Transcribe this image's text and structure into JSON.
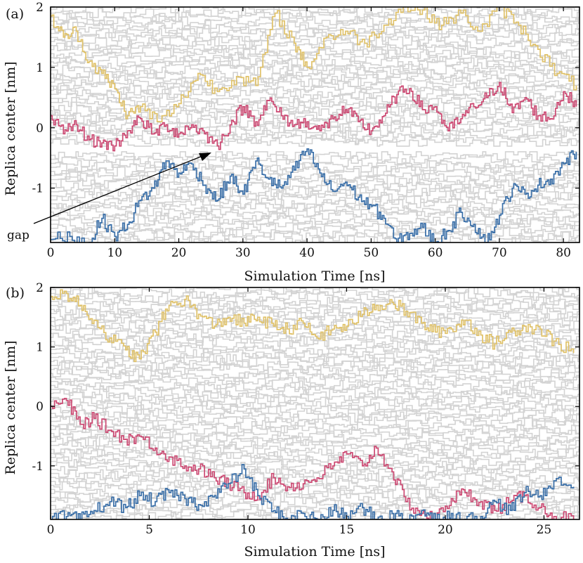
{
  "colors": {
    "background_traces": "#d3d3d3",
    "yellow": "#e0c26a",
    "red": "#cc4a73",
    "blue": "#3a6fa8",
    "axis": "#000000"
  },
  "chart_data": [
    {
      "type": "line",
      "panel_label": "(a)",
      "xlabel": "Simulation Time [ns]",
      "ylabel": "Replica center [nm]",
      "xlim": [
        0,
        82.5
      ],
      "ylim": [
        -1.9,
        2.0
      ],
      "xticks": [
        0,
        10,
        20,
        30,
        40,
        50,
        60,
        70,
        80
      ],
      "yticks": [
        -1,
        0,
        1,
        2
      ],
      "ytick_labels": [
        "-1",
        "0",
        "1",
        "2"
      ],
      "background": "dense light-grey replica trajectories over the full area",
      "gap": {
        "y": -0.35,
        "label": "gap",
        "arrow_to": {
          "x": 26,
          "y": -0.35
        }
      },
      "series": [
        {
          "color_key": "yellow",
          "x": [
            0,
            2,
            4,
            6,
            8,
            10,
            12,
            14,
            17,
            20,
            23,
            26,
            29,
            32,
            35,
            38,
            40,
            43,
            46,
            49,
            52,
            55,
            58,
            61,
            64,
            67,
            70,
            73,
            76,
            79,
            82
          ],
          "y": [
            1.85,
            1.5,
            1.6,
            1.1,
            0.9,
            0.65,
            0.2,
            0.35,
            0.1,
            0.4,
            0.9,
            0.6,
            0.85,
            0.7,
            1.9,
            1.4,
            1.0,
            1.5,
            1.6,
            1.4,
            1.7,
            2.0,
            1.95,
            1.7,
            1.9,
            1.6,
            2.0,
            1.7,
            1.3,
            0.9,
            0.7
          ]
        },
        {
          "color_key": "red",
          "x": [
            0,
            2,
            4,
            6,
            8,
            10,
            12,
            14,
            16,
            18,
            20,
            22,
            24,
            26,
            28,
            30,
            32,
            34,
            36,
            38,
            40,
            42,
            44,
            46,
            48,
            50,
            52,
            54,
            56,
            58,
            60,
            62,
            64,
            66,
            68,
            70,
            72,
            74,
            76,
            78,
            80,
            82
          ],
          "y": [
            0.2,
            -0.1,
            0.05,
            -0.2,
            -0.25,
            -0.3,
            -0.05,
            0.15,
            -0.1,
            0.05,
            -0.1,
            0.05,
            -0.1,
            -0.3,
            0.05,
            0.35,
            0.1,
            0.45,
            0.2,
            0.05,
            0.1,
            -0.05,
            0.15,
            0.3,
            0.1,
            -0.05,
            0.2,
            0.55,
            0.65,
            0.3,
            0.35,
            -0.05,
            0.15,
            0.35,
            0.5,
            0.75,
            0.25,
            0.5,
            0.2,
            0.15,
            0.6,
            0.35
          ]
        },
        {
          "color_key": "blue",
          "x": [
            0,
            3,
            6,
            8,
            10,
            12,
            14,
            16,
            18,
            20,
            22,
            24,
            26,
            28,
            30,
            32,
            34,
            36,
            38,
            40,
            42,
            44,
            46,
            48,
            50,
            52,
            54,
            56,
            58,
            60,
            62,
            64,
            66,
            68,
            70,
            72,
            74,
            76,
            78,
            80,
            82
          ],
          "y": [
            -1.85,
            -1.8,
            -1.9,
            -1.5,
            -1.8,
            -1.6,
            -1.2,
            -1.0,
            -0.55,
            -0.75,
            -0.6,
            -0.95,
            -1.2,
            -0.8,
            -1.1,
            -0.55,
            -0.85,
            -1.0,
            -0.7,
            -0.35,
            -0.75,
            -1.05,
            -0.9,
            -1.15,
            -1.3,
            -1.5,
            -1.9,
            -1.75,
            -1.65,
            -1.9,
            -1.7,
            -1.4,
            -1.6,
            -1.9,
            -1.45,
            -1.0,
            -1.1,
            -0.95,
            -0.85,
            -0.6,
            -0.4
          ]
        }
      ]
    },
    {
      "type": "line",
      "panel_label": "(b)",
      "xlabel": "Simulation Time [ns]",
      "ylabel": "Replica center [nm]",
      "xlim": [
        0,
        26.8
      ],
      "ylim": [
        -1.9,
        2.0
      ],
      "xticks": [
        0,
        5,
        10,
        15,
        20,
        25
      ],
      "yticks": [
        -1,
        0,
        1,
        2
      ],
      "ytick_labels": [
        "-1",
        "0",
        "1",
        "2"
      ],
      "background": "dense light-grey replica trajectories over the full area",
      "series": [
        {
          "color_key": "yellow",
          "x": [
            0,
            0.8,
            1.5,
            2.2,
            3,
            3.8,
            4.5,
            5.3,
            6,
            6.8,
            7.5,
            8.3,
            9,
            9.8,
            10.5,
            11.3,
            12,
            12.8,
            13.5,
            14.3,
            15,
            15.8,
            16.5,
            17.3,
            18,
            18.8,
            19.5,
            20.3,
            21,
            21.8,
            22.5,
            23.3,
            24,
            24.8,
            25.5,
            26.5
          ],
          "y": [
            1.85,
            1.9,
            1.7,
            1.45,
            1.15,
            0.95,
            0.8,
            1.25,
            1.7,
            1.8,
            1.55,
            1.35,
            1.5,
            1.4,
            1.5,
            1.35,
            1.3,
            1.4,
            1.15,
            1.3,
            1.35,
            1.55,
            1.7,
            1.75,
            1.6,
            1.4,
            1.25,
            1.3,
            1.45,
            1.2,
            1.05,
            1.25,
            1.35,
            1.3,
            1.1,
            0.9
          ]
        },
        {
          "color_key": "red",
          "x": [
            0,
            0.8,
            1.5,
            2.2,
            3,
            3.8,
            4.5,
            5.3,
            6,
            6.8,
            7.5,
            8.3,
            9,
            9.8,
            10.5,
            11.3,
            12,
            12.8,
            13.5,
            14.3,
            15,
            15.8,
            16.5,
            17.3,
            18,
            18.8,
            19.5,
            20.3,
            21,
            21.8,
            22.5,
            23.3,
            24,
            24.8,
            25.5,
            26.5
          ],
          "y": [
            0.0,
            0.1,
            -0.3,
            -0.2,
            -0.4,
            -0.55,
            -0.5,
            -0.7,
            -0.85,
            -1.0,
            -1.05,
            -1.2,
            -1.3,
            -1.45,
            -1.5,
            -1.2,
            -1.35,
            -1.3,
            -1.2,
            -1.0,
            -0.8,
            -1.0,
            -0.7,
            -1.1,
            -1.6,
            -1.8,
            -1.9,
            -1.55,
            -1.45,
            -1.6,
            -1.75,
            -1.6,
            -1.5,
            -1.7,
            -1.85,
            -1.9
          ]
        },
        {
          "color_key": "blue",
          "x": [
            0,
            0.8,
            1.5,
            2.2,
            3,
            3.8,
            4.5,
            5.3,
            6,
            6.8,
            7.5,
            8.3,
            9,
            9.8,
            10.5,
            11.3,
            12,
            12.8,
            13.5,
            14.3,
            15,
            15.8,
            16.5,
            17.3,
            18,
            18.8,
            19.5,
            20.3,
            21,
            21.8,
            22.5,
            23.3,
            24,
            24.8,
            25.5,
            26.5
          ],
          "y": [
            -1.9,
            -1.85,
            -1.9,
            -1.75,
            -1.6,
            -1.7,
            -1.5,
            -1.6,
            -1.45,
            -1.55,
            -1.65,
            -1.5,
            -1.3,
            -1.05,
            -1.5,
            -1.75,
            -1.9,
            -1.8,
            -1.9,
            -1.75,
            -1.85,
            -1.7,
            -1.9,
            -1.8,
            -1.9,
            -1.75,
            -1.9,
            -1.8,
            -1.9,
            -1.85,
            -1.6,
            -1.75,
            -1.45,
            -1.5,
            -1.25,
            -1.35
          ]
        }
      ]
    }
  ]
}
